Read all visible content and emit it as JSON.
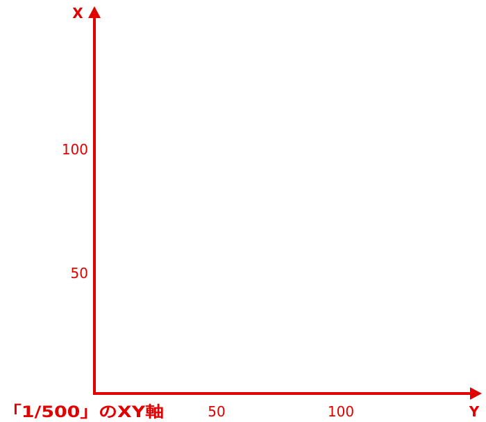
{
  "figure": {
    "color": "#e00000",
    "caption": "「1/500」のXY軸"
  },
  "axes": {
    "vertical": {
      "name": "X",
      "ticks": [
        {
          "value": 100,
          "label": "100"
        },
        {
          "value": 50,
          "label": "50"
        }
      ]
    },
    "horizontal": {
      "name": "Y",
      "ticks": [
        {
          "value": 50,
          "label": "50"
        },
        {
          "value": 100,
          "label": "100"
        }
      ]
    }
  }
}
